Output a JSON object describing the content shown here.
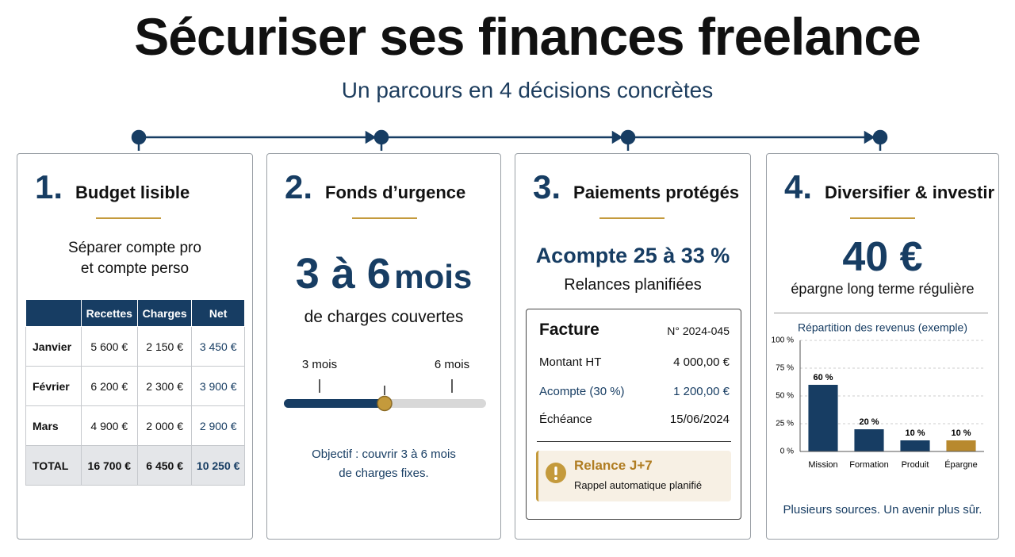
{
  "header": {
    "title": "Sécuriser ses finances freelance",
    "subtitle": "Un parcours en 4 décisions concrètes"
  },
  "cards": [
    {
      "number": "1.",
      "title": "Budget lisible",
      "lead": [
        "Séparer compte pro",
        "et compte perso"
      ],
      "table": {
        "columns": [
          "Recettes",
          "Charges",
          "Net"
        ],
        "rows": [
          [
            "Janvier",
            "5 600 €",
            "2 150 €",
            "3 450 €"
          ],
          [
            "Février",
            "6 200 €",
            "2 300 €",
            "3 900 €"
          ],
          [
            "Mars",
            "4 900 €",
            "2 000 €",
            "2 900 €"
          ],
          [
            "TOTAL",
            "16 700 €",
            "6 450 €",
            "10 250 €"
          ]
        ]
      }
    },
    {
      "number": "2.",
      "title": "Fonds d’urgence",
      "highlight": "3 à 6",
      "unit": "mois",
      "caption": "de charges couvertes",
      "scale": [
        "3 mois",
        "6 mois"
      ],
      "note": [
        "Objectif : couvrir 3 à 6 mois",
        "de charges fixes."
      ]
    },
    {
      "number": "3.",
      "title": "Paiements protégés",
      "highlight": "Acompte 25 à 33 %",
      "caption": "Relances planifiées",
      "invoice": {
        "title": "Facture",
        "number": "N° 2024-045",
        "rows": [
          [
            "Montant HT",
            "4 000,00 €"
          ],
          [
            "Acompte (30 %)",
            "1 200,00 €"
          ],
          [
            "Échéance",
            "15/06/2024"
          ]
        ],
        "alert": {
          "title": "Relance J+7",
          "text": "Rappel automatique planifié"
        }
      }
    },
    {
      "number": "4.",
      "title": "Diversifier & investir",
      "highlight": "40 €",
      "caption": "épargne long terme régulière",
      "footer": "Plusieurs sources. Un avenir plus sûr."
    }
  ],
  "chart_data": {
    "type": "bar",
    "title": "Répartition des revenus (exemple)",
    "categories": [
      "Mission",
      "Formation",
      "Produit",
      "Épargne"
    ],
    "values": [
      60,
      20,
      10,
      10
    ],
    "value_labels": [
      "60 %",
      "20 %",
      "10 %",
      "10 %"
    ],
    "colors": [
      "#173d63",
      "#173d63",
      "#173d63",
      "#b8892e"
    ],
    "ylim": [
      0,
      100
    ],
    "yticks": [
      {
        "value": 0,
        "label": "0 %"
      },
      {
        "value": 25,
        "label": "25 %"
      },
      {
        "value": 50,
        "label": "50 %"
      },
      {
        "value": 75,
        "label": "75 %"
      },
      {
        "value": 100,
        "label": "100 %"
      }
    ],
    "grid": true
  }
}
